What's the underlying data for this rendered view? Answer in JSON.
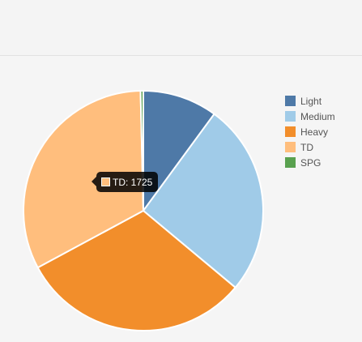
{
  "chart_data": {
    "type": "pie",
    "title": "",
    "legend_position": "right",
    "slices": [
      {
        "label": "Light",
        "value": 535,
        "color": "#4e79a7"
      },
      {
        "label": "Medium",
        "value": 1380,
        "color": "#a0cbe8"
      },
      {
        "label": "Heavy",
        "value": 1650,
        "color": "#f28e2b"
      },
      {
        "label": "TD",
        "value": 1725,
        "color": "#ffbe7d"
      },
      {
        "label": "SPG",
        "value": 20,
        "color": "#59a14f"
      }
    ]
  },
  "tooltip": {
    "series": "TD",
    "value": "1725",
    "text": "TD: 1725",
    "color": "#ffbe7d"
  }
}
